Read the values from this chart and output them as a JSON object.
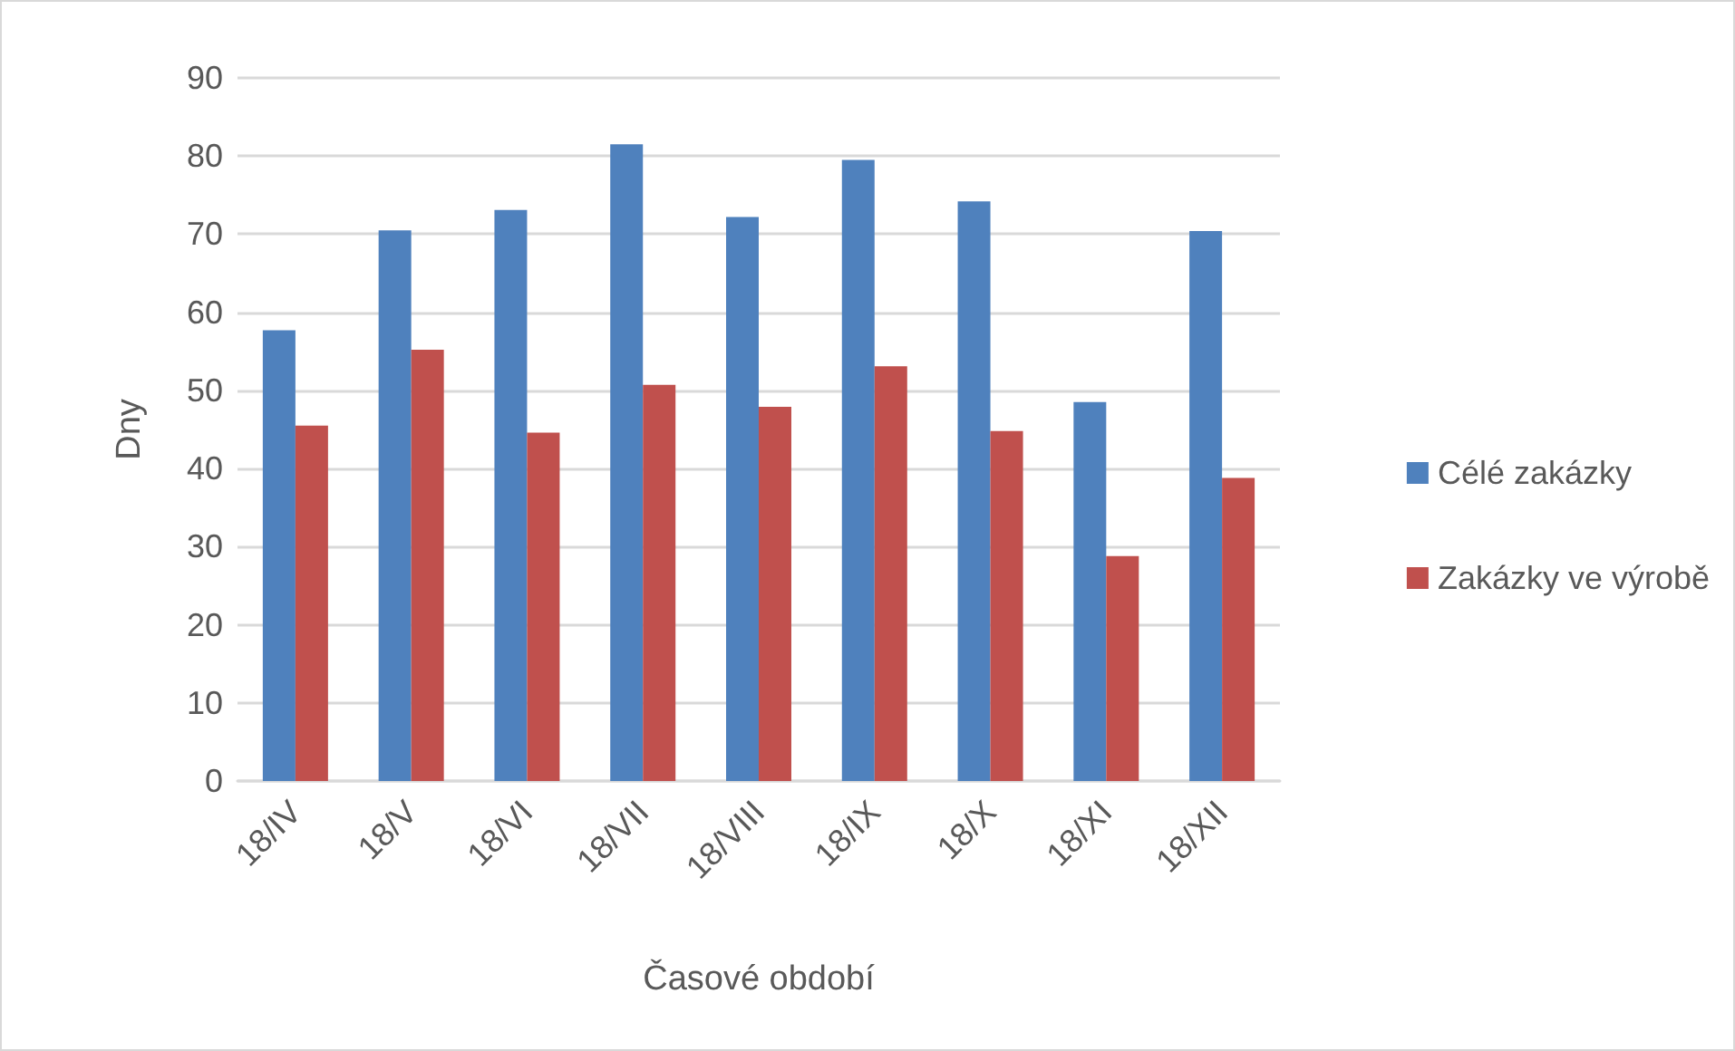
{
  "chart_data": {
    "type": "bar",
    "xlabel": "Časové období",
    "ylabel": "Dny",
    "categories": [
      "18/IV",
      "18/V",
      "18/VI",
      "18/VII",
      "18/VIII",
      "18/IX",
      "18/X",
      "18/XI",
      "18/XII"
    ],
    "series": [
      {
        "name": "Célé zakázky",
        "color": "#4f81bd",
        "values": [
          57.7,
          70.5,
          73.1,
          81.5,
          72.2,
          79.5,
          74.2,
          48.5,
          70.4
        ]
      },
      {
        "name": "Zakázky ve výrobě",
        "color": "#c0504d",
        "values": [
          45.5,
          55.2,
          44.6,
          50.7,
          47.9,
          53.1,
          44.8,
          28.8,
          38.8
        ]
      }
    ],
    "ylim": [
      0,
      90
    ],
    "yticks": [
      0,
      10,
      20,
      30,
      40,
      50,
      60,
      70,
      80,
      90
    ],
    "grid": "y",
    "legend": "right"
  }
}
